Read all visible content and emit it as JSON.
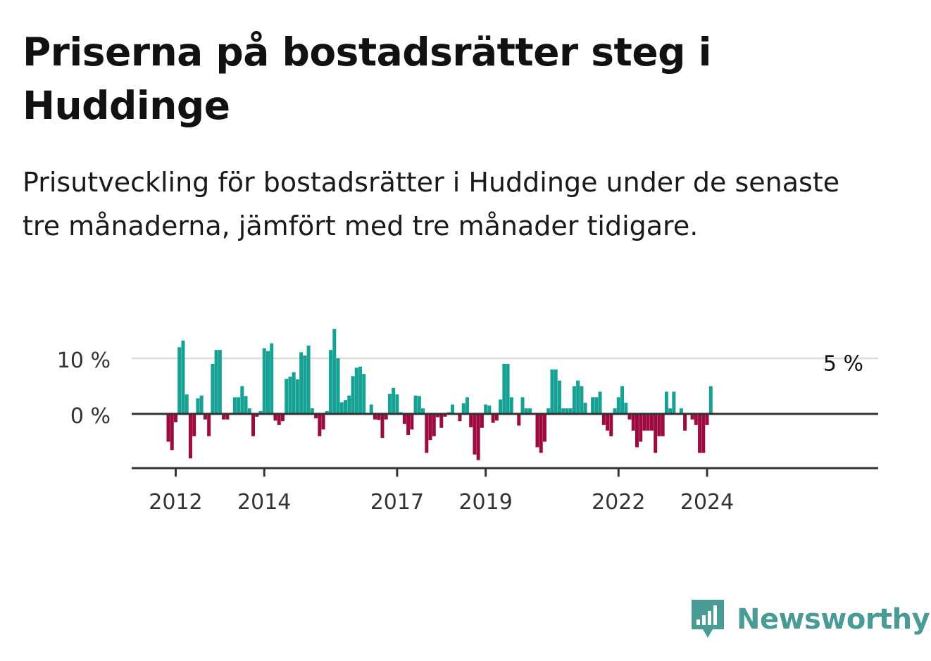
{
  "title": "Priserna på bostadsrätter steg i Huddinge",
  "subtitle": "Prisutveckling för bostadsrätter i Huddinge under de senaste tre månaderna, jämfört med tre månader tidigare.",
  "brand": {
    "name": "Newsworthy",
    "color": "#4a9a96",
    "icon": "newsworthy-logo-icon"
  },
  "colors": {
    "positive": "#16a195",
    "negative": "#9c0a3f",
    "gridline": "#dddddd",
    "axis": "#333333"
  },
  "chart_data": {
    "type": "bar",
    "title": "Priserna på bostadsrätter steg i Huddinge",
    "xlabel": "",
    "ylabel": "",
    "unit": "%",
    "y_ticks": [
      {
        "value": 0,
        "label": "0 %"
      },
      {
        "value": 10,
        "label": "10 %"
      }
    ],
    "ylim": [
      -9.5,
      15.5
    ],
    "x_ticks": [
      "2012",
      "2014",
      "2017",
      "2019",
      "2022",
      "2024"
    ],
    "grid": true,
    "legend": "none",
    "start": "2011-11",
    "end": "2024-02",
    "frequency": "monthly",
    "last_value_label": "5 %",
    "values": [
      -5,
      -6.5,
      -1.5,
      12,
      13.2,
      3.5,
      -8,
      -4,
      2.8,
      3.3,
      -1,
      -4,
      9,
      11.5,
      11.5,
      -1,
      -1,
      0,
      3,
      3,
      5,
      3.2,
      1,
      -4,
      -0.5,
      0.5,
      11.8,
      11.3,
      12.7,
      -1.2,
      -2,
      -1.3,
      6.3,
      6.7,
      7.5,
      6.2,
      11.1,
      10.5,
      12.3,
      1,
      -0.8,
      -4,
      -2.8,
      0.5,
      11.5,
      15.3,
      10,
      2.1,
      2.5,
      3.3,
      6.8,
      8.3,
      8.5,
      7.2,
      0,
      1.7,
      -1,
      -1.1,
      -4.3,
      -1,
      3.6,
      4.7,
      3.5,
      0.3,
      -1.8,
      -3.8,
      -2.8,
      3.3,
      3.2,
      1,
      -7,
      -4.7,
      -4,
      -0.6,
      -2.5,
      -0.5,
      0.3,
      1.7,
      0,
      -1.3,
      1.9,
      3,
      -2.4,
      -7.3,
      -8.3,
      -2.5,
      1.7,
      1.5,
      -1.6,
      -1.2,
      2.6,
      9,
      9,
      3,
      0,
      -2.1,
      3,
      1,
      1,
      0,
      -6,
      -7,
      -5,
      1,
      8,
      8,
      6,
      1,
      1,
      1,
      5,
      6,
      5,
      2,
      0,
      3,
      3,
      4,
      -2,
      -3,
      -4,
      1,
      3,
      5,
      2,
      -1,
      -3,
      -6,
      -5,
      -3,
      -3,
      -3,
      -7,
      -4,
      -4,
      4,
      1,
      4,
      0,
      1,
      -3,
      0,
      -1,
      -2,
      -7,
      -7,
      -2,
      5
    ]
  }
}
